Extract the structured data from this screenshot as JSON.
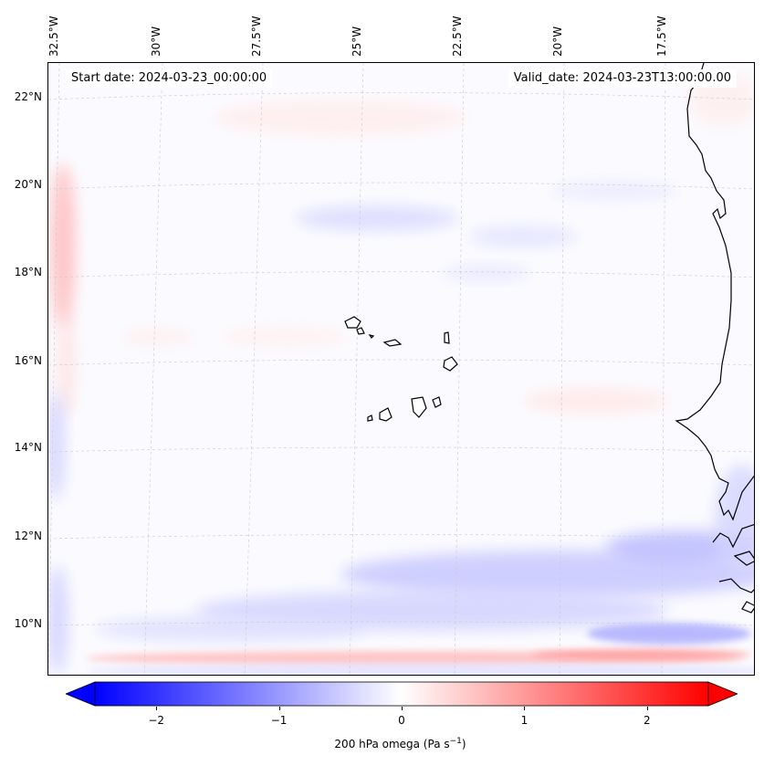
{
  "map": {
    "region": "Eastern tropical North Atlantic (Cape Verde & West Africa coast)",
    "field": "200 hPa omega",
    "start_label": "Start date: 2024-03-23_00:00:00",
    "valid_label": "Valid_date: 2024-03-23T13:00:00.00",
    "lon_ticks": [
      "32.5°W",
      "30°W",
      "27.5°W",
      "25°W",
      "22.5°W",
      "20°W",
      "17.5°W"
    ],
    "lat_ticks": [
      "22°N",
      "20°N",
      "18°N",
      "16°N",
      "14°N",
      "12°N",
      "10°N"
    ]
  },
  "colorbar": {
    "ticks": [
      "−2",
      "−1",
      "0",
      "1",
      "2"
    ],
    "tick_values": [
      -2,
      -1,
      0,
      1,
      2
    ],
    "range": [
      -2.5,
      2.5
    ],
    "label": "200 hPa omega (Pa s",
    "label_exp": "−1",
    "label_end": ")",
    "colors": {
      "low": "#0000ff",
      "mid": "#ffffff",
      "high": "#ff0000"
    }
  }
}
